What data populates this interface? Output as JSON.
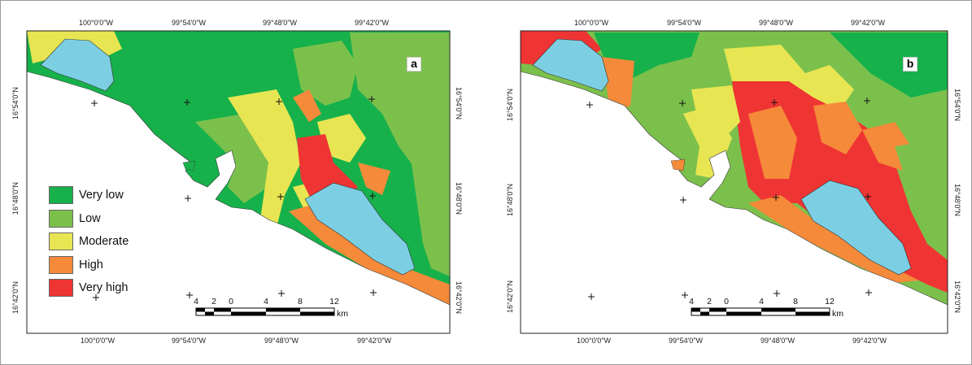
{
  "colors": {
    "very_low": "#16b14b",
    "low": "#7cc04c",
    "moderate": "#e8e552",
    "high": "#f58a3a",
    "very_high": "#ef3434",
    "water": "#7ccfe3",
    "land_bg": "#ffffff"
  },
  "legend": {
    "items": [
      {
        "label": "Very low",
        "color": "#16b14b"
      },
      {
        "label": "Low",
        "color": "#7cc04c"
      },
      {
        "label": "Moderate",
        "color": "#e8e552"
      },
      {
        "label": "High",
        "color": "#f58a3a"
      },
      {
        "label": "Very high",
        "color": "#ef3434"
      }
    ]
  },
  "panels": [
    {
      "tag": "a",
      "top_labels": [
        "100°0'0\"W",
        "99°54'0\"W",
        "99°48'0\"W",
        "99°42'0\"W"
      ],
      "bottom_labels": [
        "100°0'0\"W",
        "99°54'0\"W",
        "99°48'0\"W",
        "99°42'0\"W"
      ],
      "left_labels": [
        "16°54'0\"N",
        "16°48'0\"N",
        "16°42'0\"N"
      ],
      "right_labels": [
        "16°54'0\"N",
        "16°48'0\"N",
        "16°42'0\"N"
      ]
    },
    {
      "tag": "b",
      "top_labels": [
        "100°0'0\"W",
        "99°54'0\"W",
        "99°48'0\"W",
        "99°42'0\"W"
      ],
      "bottom_labels": [
        "100°0'0\"W",
        "99°54'0\"W",
        "99°48'0\"W",
        "99°42'0\"W"
      ],
      "left_labels": [
        "16°54'0\"N",
        "16°48'0\"N",
        "16°42'0\"N"
      ],
      "right_labels": [
        "16°54'0\"N",
        "16°48'0\"N",
        "16°42'0\"N"
      ]
    }
  ],
  "scale_bar": {
    "ticks": [
      "4",
      "2",
      "0",
      "4",
      "8",
      "12"
    ],
    "unit": "km"
  }
}
